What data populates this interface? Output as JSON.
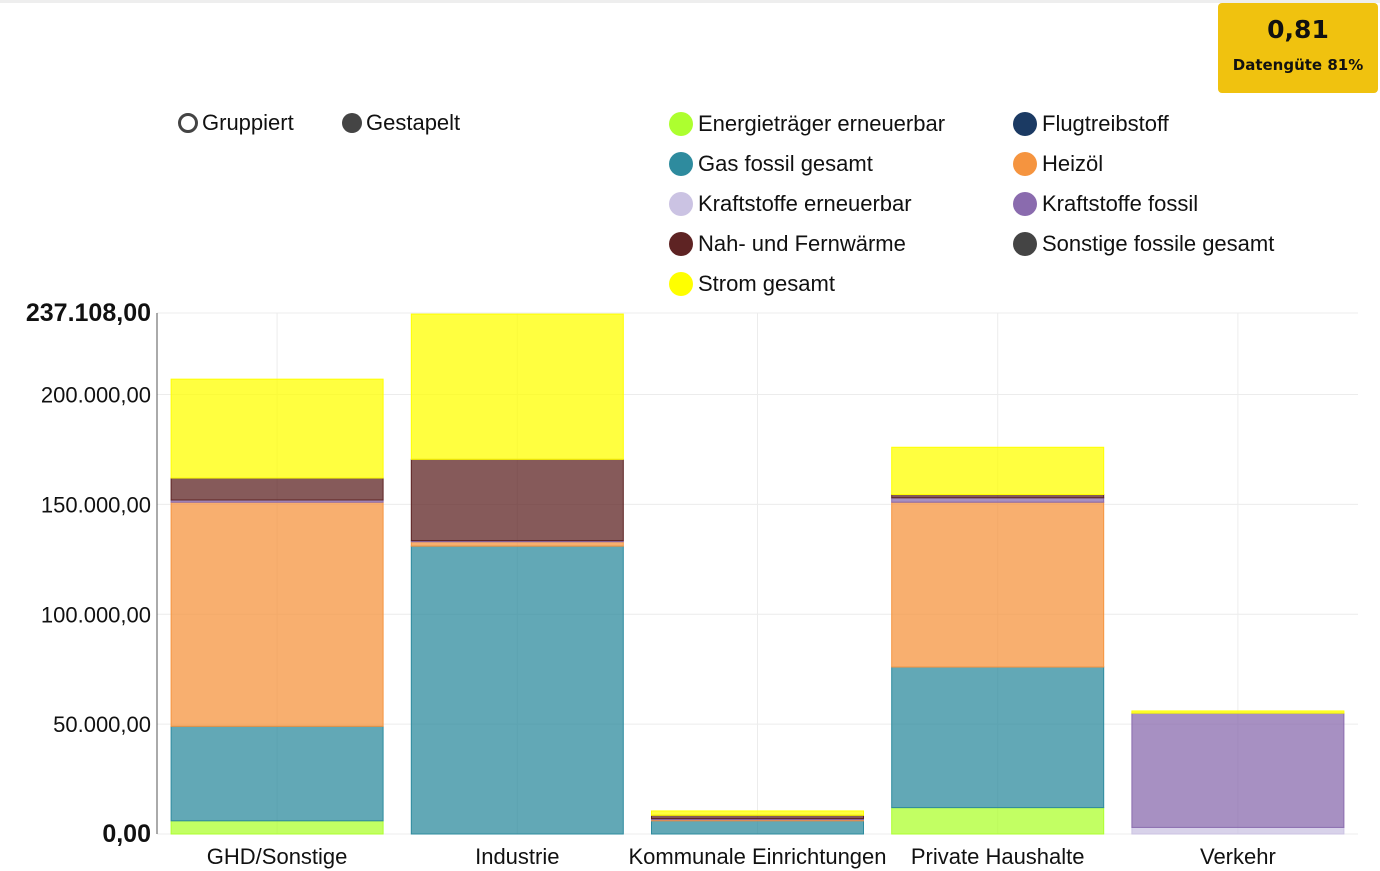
{
  "badge": {
    "value": "0,81",
    "label": "Datengüte 81%",
    "color": "#f0c20f"
  },
  "modes": [
    {
      "label": "Gruppiert",
      "selected": false
    },
    {
      "label": "Gestapelt",
      "selected": true
    }
  ],
  "chart_data": {
    "type": "bar",
    "stacked": true,
    "categories": [
      "GHD/Sonstige",
      "Industrie",
      "Kommunale Einrichtungen",
      "Private Haushalte",
      "Verkehr"
    ],
    "ylim": [
      0,
      237108
    ],
    "yticks": [
      {
        "value": 0,
        "label": "0,00",
        "bold": true
      },
      {
        "value": 50000,
        "label": "50.000,00",
        "bold": false
      },
      {
        "value": 100000,
        "label": "100.000,00",
        "bold": false
      },
      {
        "value": 150000,
        "label": "150.000,00",
        "bold": false
      },
      {
        "value": 200000,
        "label": "200.000,00",
        "bold": false
      },
      {
        "value": 237108,
        "label": "237.108,00",
        "bold": true
      }
    ],
    "grid": true,
    "legend_position": "top-right",
    "series": [
      {
        "name": "Energieträger erneuerbar",
        "color": "#adff2f",
        "values": [
          6000,
          0,
          0,
          12000,
          0
        ]
      },
      {
        "name": "Flugtreibstoff",
        "color": "#1b3a63",
        "values": [
          0,
          0,
          0,
          0,
          0
        ]
      },
      {
        "name": "Gas fossil gesamt",
        "color": "#2e8b9e",
        "values": [
          43000,
          131000,
          6000,
          64000,
          0
        ]
      },
      {
        "name": "Heizöl",
        "color": "#f5943f",
        "values": [
          102000,
          2000,
          500,
          75000,
          0
        ]
      },
      {
        "name": "Kraftstoffe erneuerbar",
        "color": "#cbc3e3",
        "values": [
          0,
          0,
          0,
          0,
          3000
        ]
      },
      {
        "name": "Kraftstoffe fossil",
        "color": "#8a6bae",
        "values": [
          1000,
          500,
          500,
          2000,
          52000
        ]
      },
      {
        "name": "Nah- und Fernwärme",
        "color": "#5e2323",
        "values": [
          10000,
          37000,
          1500,
          1500,
          0
        ]
      },
      {
        "name": "Sonstige fossile gesamt",
        "color": "#444444",
        "values": [
          0,
          0,
          0,
          0,
          0
        ]
      },
      {
        "name": "Strom gesamt",
        "color": "#ffff00",
        "values": [
          45000,
          66108,
          2000,
          21500,
          1000
        ]
      }
    ]
  }
}
